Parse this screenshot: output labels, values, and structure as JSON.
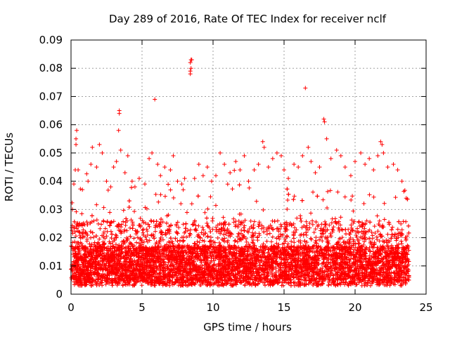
{
  "chart_data": {
    "type": "scatter",
    "title": "Day 289 of 2016, Rate Of TEC Index for receiver nclf",
    "xlabel": "GPS time / hours",
    "ylabel": "ROTI / TECUs",
    "xlim": [
      0,
      25
    ],
    "ylim": [
      0,
      0.09
    ],
    "xticks": [
      0,
      5,
      10,
      15,
      20,
      25
    ],
    "xtick_labels": [
      "0",
      "5",
      "10",
      "15",
      "20",
      "25"
    ],
    "yticks": [
      0,
      0.01,
      0.02,
      0.03,
      0.04,
      0.05,
      0.06,
      0.07,
      0.08,
      0.09
    ],
    "ytick_labels": [
      "0",
      "0.01",
      "0.02",
      "0.03",
      "0.04",
      "0.05",
      "0.06",
      "0.07",
      "0.08",
      "0.09"
    ],
    "grid": true,
    "marker": "+",
    "color": "#ff0000",
    "series": [
      {
        "name": "ROTI",
        "points": [
          [
            0.1,
            0.03
          ],
          [
            0.2,
            0.039
          ],
          [
            0.3,
            0.044
          ],
          [
            0.35,
            0.053
          ],
          [
            0.35,
            0.055
          ],
          [
            0.4,
            0.058
          ],
          [
            0.5,
            0.044
          ],
          [
            0.8,
            0.037
          ],
          [
            1.2,
            0.04
          ],
          [
            1.4,
            0.046
          ],
          [
            1.5,
            0.052
          ],
          [
            1.8,
            0.045
          ],
          [
            2.0,
            0.053
          ],
          [
            2.2,
            0.05
          ],
          [
            2.5,
            0.04
          ],
          [
            2.8,
            0.038
          ],
          [
            3.0,
            0.045
          ],
          [
            3.2,
            0.047
          ],
          [
            3.35,
            0.058
          ],
          [
            3.4,
            0.064
          ],
          [
            3.4,
            0.065
          ],
          [
            3.5,
            0.051
          ],
          [
            3.8,
            0.043
          ],
          [
            4.0,
            0.049
          ],
          [
            4.3,
            0.04
          ],
          [
            4.5,
            0.038
          ],
          [
            4.8,
            0.041
          ],
          [
            5.2,
            0.039
          ],
          [
            5.5,
            0.048
          ],
          [
            5.7,
            0.05
          ],
          [
            5.9,
            0.069
          ],
          [
            6.1,
            0.046
          ],
          [
            6.3,
            0.042
          ],
          [
            6.6,
            0.045
          ],
          [
            7.0,
            0.044
          ],
          [
            7.2,
            0.049
          ],
          [
            7.5,
            0.04
          ],
          [
            7.8,
            0.039
          ],
          [
            8.0,
            0.041
          ],
          [
            8.4,
            0.078
          ],
          [
            8.4,
            0.079
          ],
          [
            8.45,
            0.08
          ],
          [
            8.4,
            0.082
          ],
          [
            8.5,
            0.083
          ],
          [
            8.45,
            0.083
          ],
          [
            8.7,
            0.041
          ],
          [
            9.0,
            0.046
          ],
          [
            9.3,
            0.042
          ],
          [
            9.6,
            0.045
          ],
          [
            9.9,
            0.04
          ],
          [
            10.2,
            0.042
          ],
          [
            10.5,
            0.05
          ],
          [
            10.8,
            0.046
          ],
          [
            11.2,
            0.043
          ],
          [
            11.6,
            0.047
          ],
          [
            11.9,
            0.044
          ],
          [
            12.2,
            0.049
          ],
          [
            12.5,
            0.04
          ],
          [
            12.9,
            0.044
          ],
          [
            13.2,
            0.046
          ],
          [
            13.5,
            0.054
          ],
          [
            13.6,
            0.052
          ],
          [
            13.9,
            0.045
          ],
          [
            14.2,
            0.048
          ],
          [
            14.5,
            0.05
          ],
          [
            14.8,
            0.049
          ],
          [
            15.0,
            0.044
          ],
          [
            15.3,
            0.041
          ],
          [
            15.7,
            0.046
          ],
          [
            16.0,
            0.045
          ],
          [
            16.3,
            0.049
          ],
          [
            16.5,
            0.073
          ],
          [
            16.7,
            0.052
          ],
          [
            16.9,
            0.047
          ],
          [
            17.2,
            0.043
          ],
          [
            17.5,
            0.045
          ],
          [
            17.8,
            0.062
          ],
          [
            17.85,
            0.061
          ],
          [
            18.0,
            0.055
          ],
          [
            18.3,
            0.048
          ],
          [
            18.7,
            0.051
          ],
          [
            19.0,
            0.049
          ],
          [
            19.3,
            0.045
          ],
          [
            19.7,
            0.042
          ],
          [
            20.0,
            0.047
          ],
          [
            20.4,
            0.05
          ],
          [
            20.7,
            0.046
          ],
          [
            21.0,
            0.048
          ],
          [
            21.3,
            0.044
          ],
          [
            21.6,
            0.049
          ],
          [
            21.8,
            0.054
          ],
          [
            21.9,
            0.053
          ],
          [
            22.0,
            0.05
          ],
          [
            22.3,
            0.045
          ],
          [
            22.7,
            0.046
          ],
          [
            23.0,
            0.044
          ],
          [
            23.3,
            0.04
          ],
          [
            23.6,
            0.034
          ]
        ]
      }
    ]
  }
}
